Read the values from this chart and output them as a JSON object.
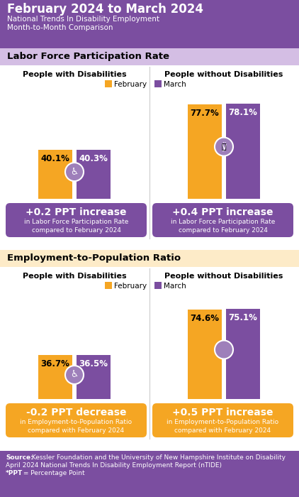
{
  "title_line1": "February 2024 to March 2024",
  "header_bg": "#7B4EA0",
  "section1_title": "Labor Force Participation Rate",
  "section1_bg": "#D4BEE4",
  "section2_title": "Employment-to-Population Ratio",
  "section2_bg": "#FDEBC8",
  "col1_title": "People with Disabilities",
  "col2_title": "People without Disabilities",
  "legend_feb": "February",
  "legend_mar": "March",
  "feb_color": "#F5A623",
  "mar_color": "#7B4EA0",
  "lfpr_dis_feb": 40.1,
  "lfpr_dis_mar": 40.3,
  "lfpr_nodis_feb": 77.7,
  "lfpr_nodis_mar": 78.1,
  "epr_dis_feb": 36.7,
  "epr_dis_mar": 36.5,
  "epr_nodis_feb": 74.6,
  "epr_nodis_mar": 75.1,
  "lfpr_dis_change": "+0.2 PPT increase",
  "lfpr_dis_sub": "in Labor Force Participation Rate\ncompared to February 2024",
  "lfpr_nodis_change": "+0.4 PPT increase",
  "lfpr_nodis_sub": "in Labor Force Participation Rate\ncompared to February 2024",
  "epr_dis_change": "-0.2 PPT decrease",
  "epr_dis_sub": "in Employment-to-Population Ratio\ncompared with February 2024",
  "epr_nodis_change": "+0.5 PPT increase",
  "epr_nodis_sub": "in Employment-to-Population Ratio\ncompared with February 2024",
  "source_text_bold": "Source:",
  "source_text_rest": " Kessler Foundation and the University of New Hampshire Institute on Disability",
  "source_line2": "April 2024 National Trends In Disability Employment Report (nTIDE)",
  "source_line3_bold": "*PPT",
  "source_line3_rest": " = Percentage Point",
  "source_bg": "#7B4EA0",
  "main_bg": "#FFFFFF",
  "epr_box_color": "#F5A623",
  "lfpr_box_color": "#7B4EA0"
}
